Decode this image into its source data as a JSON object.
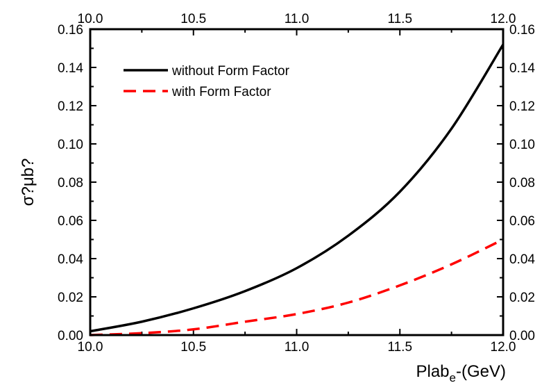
{
  "chart_data": {
    "type": "line",
    "title": "",
    "xlabel": "Plab",
    "xlabel_sub": "e",
    "xlabel_suffix": "-(GeV)",
    "ylabel": "σ?μb?",
    "xlim": [
      10.0,
      12.0
    ],
    "ylim": [
      0.0,
      0.16
    ],
    "x_ticks": [
      "10.0",
      "10.5",
      "11.0",
      "11.5",
      "12.0"
    ],
    "y_ticks": [
      "0.00",
      "0.02",
      "0.04",
      "0.06",
      "0.08",
      "0.10",
      "0.12",
      "0.14",
      "0.16"
    ],
    "mirror_axes": true,
    "grid": false,
    "legend_position": "top-left",
    "series": [
      {
        "name": "without Form Factor",
        "color": "#000000",
        "dash": "solid",
        "x": [
          10.0,
          10.25,
          10.5,
          10.75,
          11.0,
          11.25,
          11.5,
          11.75,
          12.0
        ],
        "y": [
          0.002,
          0.007,
          0.014,
          0.023,
          0.035,
          0.052,
          0.075,
          0.108,
          0.152
        ]
      },
      {
        "name": "with Form Factor",
        "color": "#ff0000",
        "dash": "dashed",
        "x": [
          10.0,
          10.25,
          10.5,
          10.75,
          11.0,
          11.25,
          11.5,
          11.75,
          12.0
        ],
        "y": [
          0.0,
          0.001,
          0.003,
          0.007,
          0.011,
          0.017,
          0.026,
          0.037,
          0.05
        ]
      }
    ]
  }
}
